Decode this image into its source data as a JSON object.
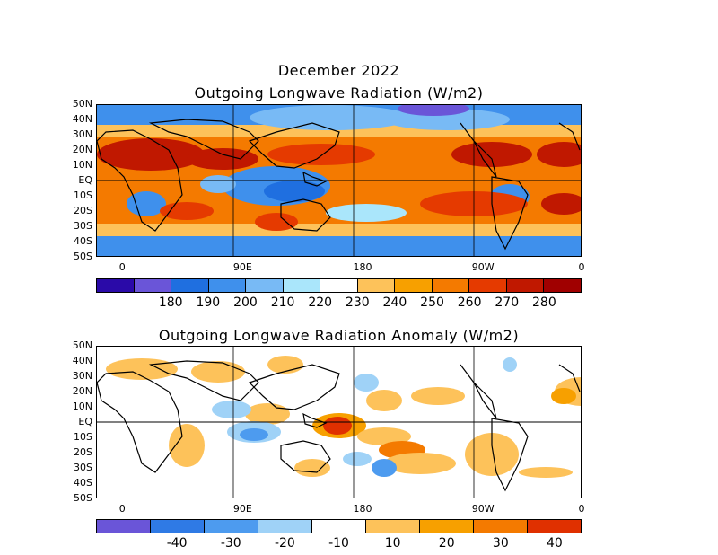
{
  "figure": {
    "date_title": "December 2022"
  },
  "map1": {
    "title": "Outgoing Longwave Radiation (W/m2)",
    "lat_labels": [
      "50N",
      "40N",
      "30N",
      "20N",
      "10N",
      "EQ",
      "10S",
      "20S",
      "30S",
      "40S",
      "50S"
    ],
    "lon_labels": [
      "0",
      "90E",
      "180",
      "90W",
      "0"
    ],
    "colorbar": {
      "colors": [
        "#2a0aa8",
        "#6a55d8",
        "#1f6fe0",
        "#3f90ec",
        "#78baf5",
        "#aae6fb",
        "#ffffff",
        "#fdc25a",
        "#f7a000",
        "#f47a00",
        "#e53a00",
        "#c01800",
        "#a00000"
      ],
      "labels": [
        "180",
        "190",
        "200",
        "210",
        "220",
        "230",
        "240",
        "250",
        "260",
        "270",
        "280"
      ]
    }
  },
  "map2": {
    "title": "Outgoing Longwave Radiation Anomaly (W/m2)",
    "lat_labels": [
      "50N",
      "40N",
      "30N",
      "20N",
      "10N",
      "EQ",
      "10S",
      "20S",
      "30S",
      "40S",
      "50S"
    ],
    "lon_labels": [
      "0",
      "90E",
      "180",
      "90W",
      "0"
    ],
    "colorbar": {
      "colors": [
        "#6a55d8",
        "#2f7ae5",
        "#4d9bef",
        "#9fd2f7",
        "#ffffff",
        "#fdc25a",
        "#f7a000",
        "#f47a00",
        "#e03000"
      ],
      "labels": [
        "-40",
        "-30",
        "-20",
        "-10",
        "10",
        "20",
        "30",
        "40"
      ]
    }
  }
}
